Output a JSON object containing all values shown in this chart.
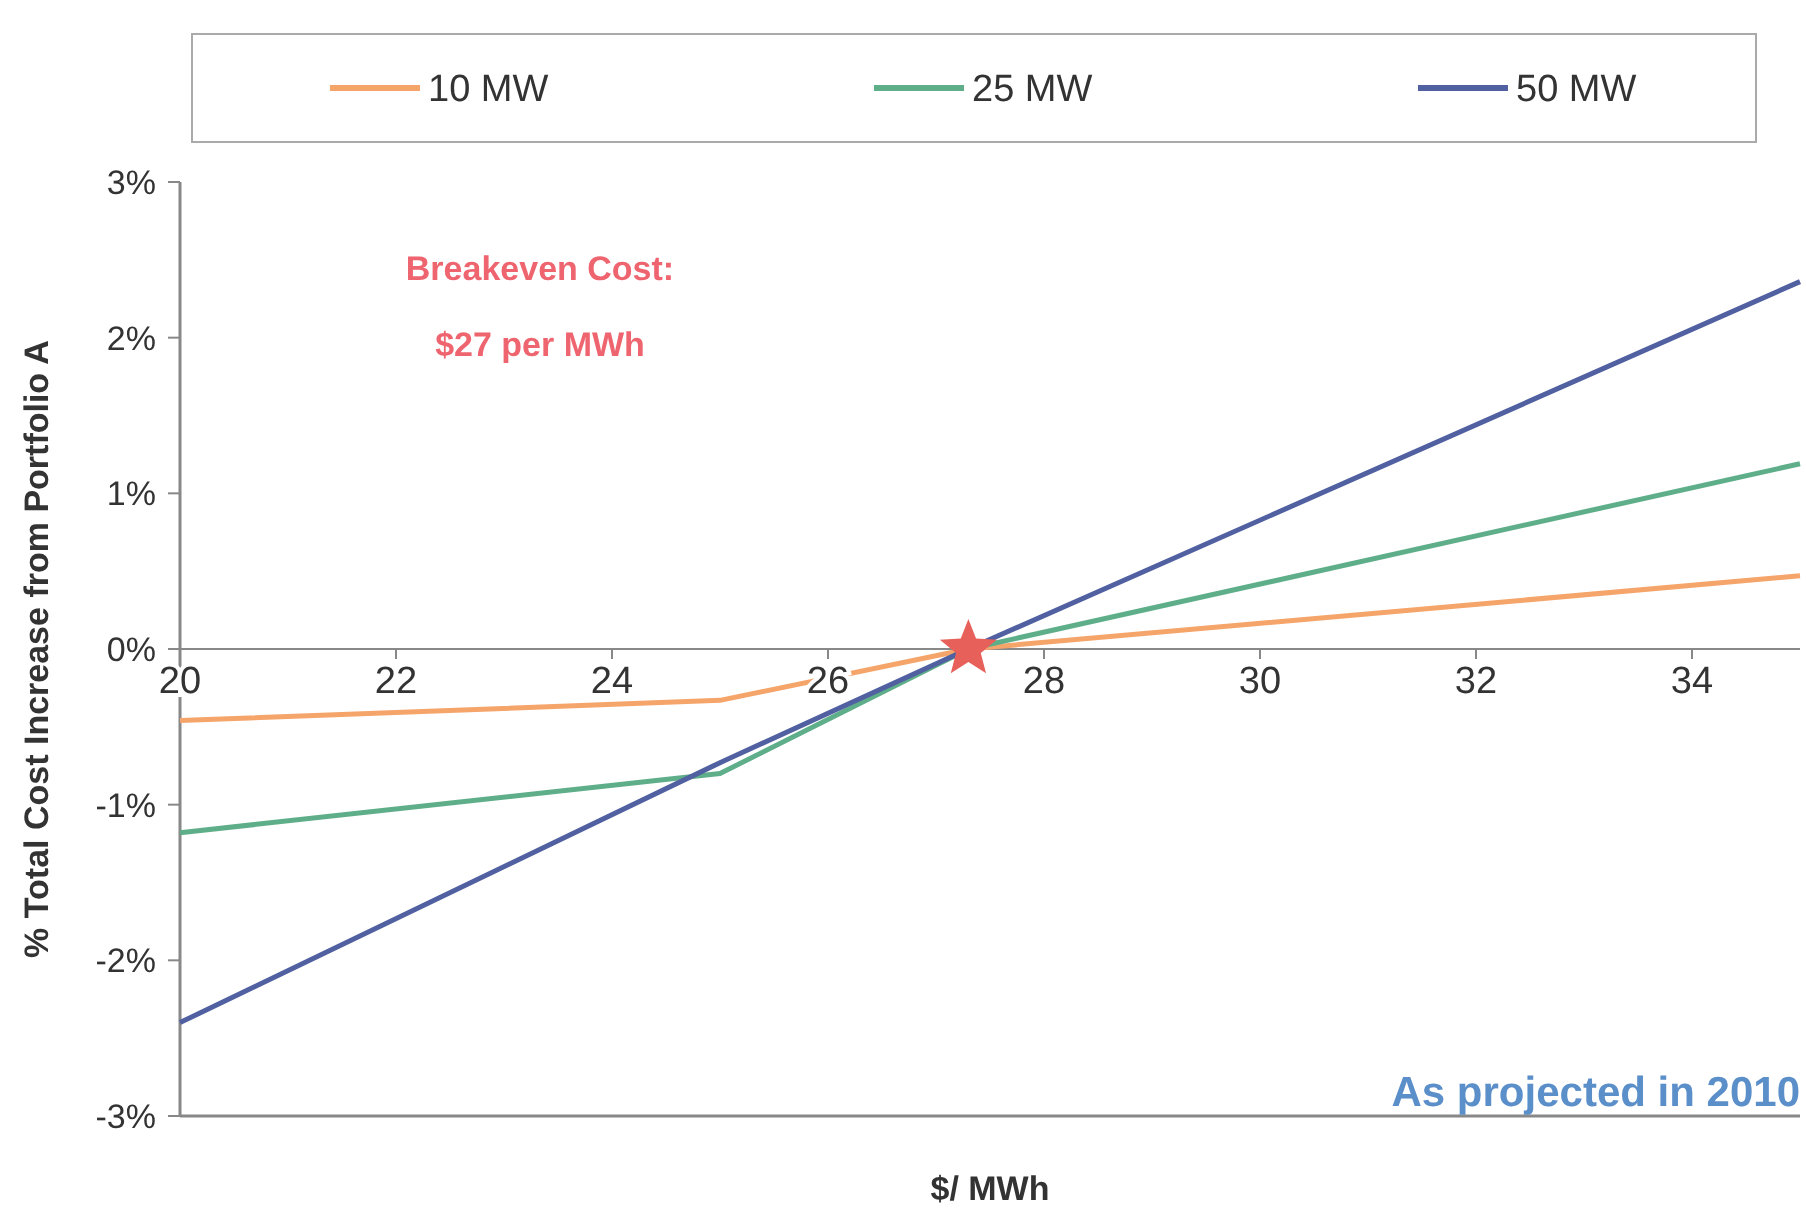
{
  "chart_data": {
    "type": "line",
    "xlabel": "$/ MWh",
    "ylabel": "% Total Cost Increase from Portfolio A",
    "x": [
      20,
      25,
      27.3,
      35
    ],
    "series": [
      {
        "name": "10 MW",
        "color": "#f5a46a",
        "values": [
          -0.46,
          -0.33,
          0,
          0.47
        ]
      },
      {
        "name": "25 MW",
        "color": "#5fae8a",
        "values": [
          -1.18,
          -0.8,
          0,
          1.19
        ]
      },
      {
        "name": "50 MW",
        "color": "#5060a0",
        "values": [
          -2.4,
          -0.73,
          0,
          2.36
        ]
      },
      {
        "type": "scatter",
        "marker": "star",
        "color": "#e8605a",
        "x": [
          27.3
        ],
        "values": [
          0
        ]
      }
    ],
    "xlim": [
      20,
      35
    ],
    "xticks": [
      20,
      22,
      24,
      26,
      28,
      30,
      32,
      34
    ],
    "ylim": [
      -3,
      3
    ],
    "yticks": [
      {
        "value": -3,
        "label": "-3%"
      },
      {
        "value": -2,
        "label": "-2%"
      },
      {
        "value": -1,
        "label": "-1%"
      },
      {
        "value": 0,
        "label": "0%"
      },
      {
        "value": 1,
        "label": "1%"
      },
      {
        "value": 2,
        "label": "2%"
      },
      {
        "value": 3,
        "label": "3%"
      }
    ],
    "legend": "top",
    "grid": false,
    "marker": "none",
    "line_style": "solid",
    "annotations": [
      "Breakeven Cost:\n$27 per MWh",
      "As projected in 2010"
    ]
  }
}
